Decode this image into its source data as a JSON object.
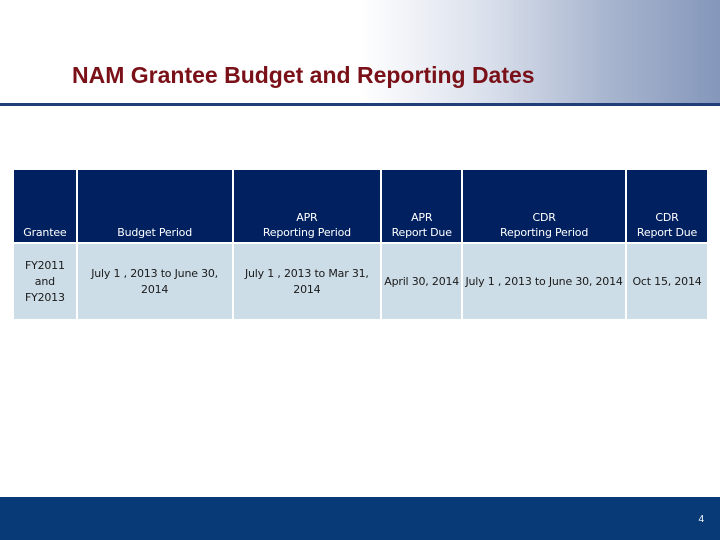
{
  "slide": {
    "title": "NAM Grantee Budget and Reporting Dates",
    "page_number": "4"
  },
  "table": {
    "headers": [
      "Grantee",
      "Budget Period",
      "APR\nReporting Period",
      "APR\nReport Due",
      "CDR\nReporting Period",
      "CDR\nReport Due"
    ],
    "rows": [
      [
        "FY2011\nand\nFY2013",
        "July 1 , 2013 to June 30, 2014",
        "July 1 , 2013 to Mar 31, 2014",
        "April 30, 2014",
        "July 1 , 2013 to June 30, 2014",
        "Oct 15, 2014"
      ]
    ]
  },
  "colors": {
    "title": "#7a1118",
    "header_fill": "#002060",
    "cell_fill": "#cddde7",
    "footer": "#073a76"
  }
}
